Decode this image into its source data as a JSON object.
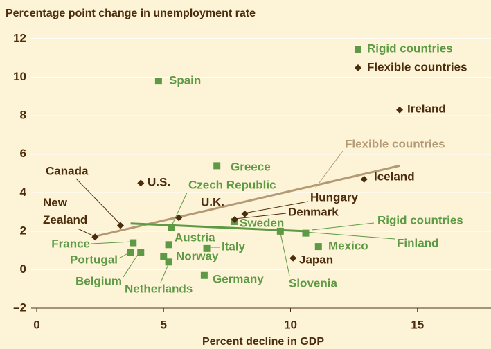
{
  "chart_data": {
    "type": "scatter",
    "title": "Percentage point change in unemployment rate",
    "x_label": "Percent decline in GDP",
    "xlim": [
      0,
      17.9
    ],
    "ylim": [
      -2,
      12
    ],
    "xticks": [
      0,
      5,
      10,
      15
    ],
    "yticks": [
      {
        "value": -2,
        "label": "–2"
      },
      0,
      2,
      4,
      6,
      8,
      10,
      12
    ],
    "grid": true,
    "legend": "upper right",
    "series": [
      {
        "name": "Rigid countries",
        "color": "#5e9a46",
        "marker": "square",
        "labels": [
          "Spain",
          "Greece",
          "Czech Republic",
          "Sweden",
          "Austria",
          "Italy",
          "Norway",
          "Netherlands",
          "France",
          "Portugal",
          "Belgium",
          "Germany",
          "Slovenia",
          "Finland",
          "Mexico"
        ],
        "x": [
          4.8,
          7.1,
          5.3,
          7.8,
          5.2,
          6.7,
          5.0,
          5.2,
          3.8,
          3.7,
          4.1,
          6.6,
          9.6,
          10.6,
          11.1
        ],
        "values": [
          9.8,
          5.4,
          2.2,
          2.5,
          1.3,
          1.1,
          0.7,
          0.4,
          1.4,
          0.9,
          0.9,
          -0.3,
          2.0,
          1.9,
          1.2
        ]
      },
      {
        "name": "Flexible countries",
        "color": "#4b2c0c",
        "marker": "diamond",
        "labels": [
          "Canada",
          "New Zealand",
          "U.S.",
          "U.K.",
          "Hungary",
          "Denmark",
          "Iceland",
          "Ireland",
          "Japan"
        ],
        "x": [
          3.3,
          2.3,
          4.1,
          5.6,
          8.2,
          7.8,
          12.9,
          14.3,
          10.1
        ],
        "values": [
          2.3,
          1.7,
          4.5,
          2.7,
          2.9,
          2.6,
          4.7,
          8.3,
          0.6
        ]
      }
    ],
    "trendlines": [
      {
        "label": "Flexible countries",
        "color": "#b49a74",
        "x": [
          2.2,
          14.3
        ],
        "values": [
          1.7,
          5.4
        ]
      },
      {
        "label": "Rigid countries",
        "color": "#5e9a46",
        "x": [
          3.7,
          10.6
        ],
        "values": [
          2.4,
          2.0
        ]
      }
    ]
  }
}
